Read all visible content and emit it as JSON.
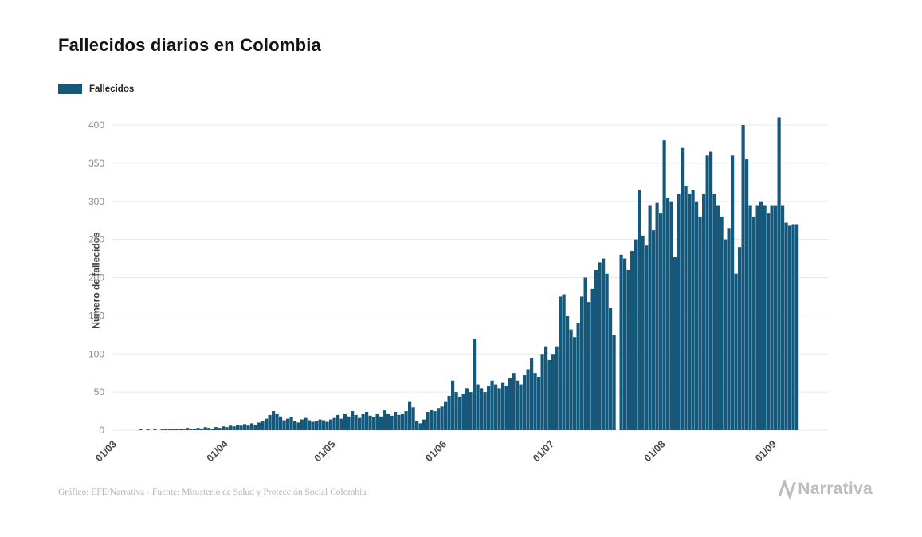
{
  "page": {
    "title": "Fallecidos diarios en Colombia",
    "legend": {
      "label": "Fallecidos"
    },
    "footer": "Gráfico: EFE/Narrativa - Fuente: Ministerio de Salud y Protección Social Colombia",
    "brand": "Narrativa"
  },
  "chart_data": {
    "type": "bar",
    "title": "Fallecidos diarios en Colombia",
    "series_name": "Fallecidos",
    "xlabel": "",
    "ylabel": "Número de fallecidos",
    "bar_color": "#14587c",
    "grid": true,
    "grid_color": "#eaeaea",
    "ylim": [
      0,
      400
    ],
    "y_ticks": [
      0,
      50,
      100,
      150,
      200,
      250,
      300,
      350,
      400
    ],
    "x_tick_labels": [
      "01/03",
      "01/04",
      "01/05",
      "01/06",
      "01/07",
      "01/08",
      "01/09"
    ],
    "x_tick_indices": [
      0,
      31,
      61,
      92,
      122,
      153,
      184
    ],
    "start_date": "01/03/2020",
    "values": [
      0,
      0,
      0,
      0,
      0,
      0,
      0,
      1,
      0,
      1,
      0,
      1,
      0,
      1,
      1,
      2,
      1,
      2,
      2,
      1,
      3,
      2,
      2,
      3,
      2,
      4,
      3,
      2,
      4,
      3,
      5,
      4,
      6,
      5,
      7,
      6,
      8,
      6,
      9,
      7,
      10,
      12,
      15,
      20,
      25,
      22,
      18,
      13,
      15,
      17,
      12,
      10,
      14,
      16,
      13,
      11,
      12,
      14,
      13,
      11,
      14,
      16,
      20,
      15,
      22,
      18,
      25,
      20,
      16,
      21,
      24,
      19,
      17,
      22,
      18,
      26,
      22,
      19,
      24,
      20,
      22,
      25,
      38,
      30,
      12,
      9,
      14,
      24,
      27,
      25,
      29,
      31,
      38,
      45,
      65,
      50,
      44,
      48,
      55,
      50,
      120,
      60,
      55,
      50,
      58,
      65,
      60,
      55,
      62,
      58,
      68,
      75,
      65,
      60,
      72,
      80,
      95,
      75,
      70,
      100,
      110,
      92,
      100,
      110,
      175,
      178,
      150,
      132,
      122,
      140,
      175,
      200,
      168,
      185,
      210,
      220,
      225,
      205,
      160,
      125,
      0,
      230,
      225,
      210,
      235,
      250,
      315,
      255,
      242,
      295,
      262,
      298,
      285,
      380,
      305,
      300,
      227,
      310,
      370,
      320,
      310,
      315,
      300,
      280,
      310,
      360,
      365,
      310,
      295,
      280,
      250,
      265,
      360,
      205,
      240,
      400,
      355,
      295,
      280,
      295,
      300,
      295,
      285,
      295,
      295,
      410,
      295,
      272,
      268,
      270,
      270
    ]
  }
}
